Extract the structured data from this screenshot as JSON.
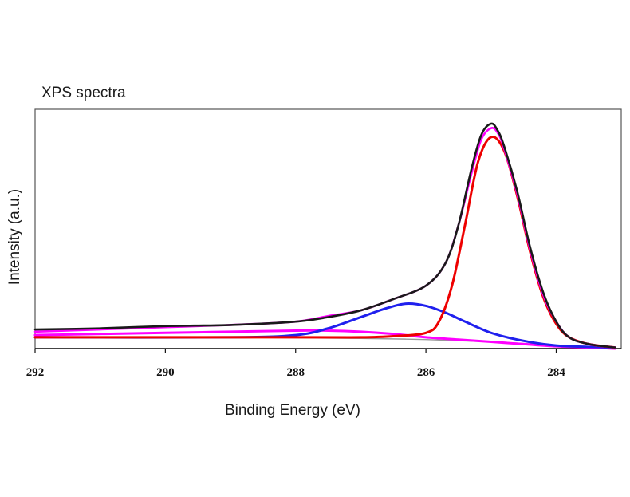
{
  "chart_data": {
    "type": "line",
    "title": "XPS spectra",
    "xlabel": "Binding Energy (eV)",
    "ylabel": "Intensity (a.u.)",
    "x_reversed": true,
    "xlim": [
      292,
      283.1
    ],
    "ylim": [
      0,
      1
    ],
    "xticks": [
      292,
      290,
      288,
      286,
      284
    ],
    "yticks": [],
    "grid": false,
    "legend": "none",
    "series": [
      {
        "color": "#1a1a1a",
        "x": [
          292.0,
          291.0,
          290.0,
          289.0,
          288.0,
          287.5,
          287.0,
          286.5,
          286.0,
          285.7,
          285.5,
          285.3,
          285.15,
          285.0,
          284.9,
          284.8,
          284.6,
          284.4,
          284.2,
          284.0,
          283.8,
          283.5,
          283.1
        ],
        "y": [
          0.085,
          0.09,
          0.1,
          0.105,
          0.12,
          0.14,
          0.17,
          0.22,
          0.28,
          0.38,
          0.55,
          0.8,
          0.95,
          1.0,
          0.97,
          0.9,
          0.7,
          0.45,
          0.25,
          0.12,
          0.05,
          0.02,
          0.005
        ]
      },
      {
        "color": "#ff00ff",
        "x": [
          292.0,
          291.0,
          290.0,
          289.0,
          288.0,
          287.5,
          287.0,
          286.5,
          286.0,
          285.7,
          285.5,
          285.3,
          285.15,
          285.0,
          284.9,
          284.8,
          284.6,
          284.4,
          284.2,
          284.0,
          283.8,
          283.5,
          283.1
        ],
        "y": [
          0.075,
          0.085,
          0.095,
          0.105,
          0.12,
          0.145,
          0.17,
          0.22,
          0.28,
          0.38,
          0.55,
          0.78,
          0.93,
          0.98,
          0.96,
          0.89,
          0.69,
          0.44,
          0.24,
          0.12,
          0.05,
          0.02,
          0.005
        ]
      },
      {
        "color": "#ee0000",
        "x": [
          292.0,
          288.0,
          287.0,
          286.5,
          286.0,
          285.8,
          285.6,
          285.4,
          285.2,
          285.0,
          284.8,
          284.6,
          284.4,
          284.2,
          284.0,
          283.8,
          283.5,
          283.1
        ],
        "y": [
          0.05,
          0.05,
          0.05,
          0.055,
          0.07,
          0.12,
          0.28,
          0.55,
          0.83,
          0.94,
          0.88,
          0.68,
          0.43,
          0.23,
          0.11,
          0.05,
          0.02,
          0.005
        ]
      },
      {
        "color": "#2020ee",
        "x": [
          292.0,
          289.0,
          288.0,
          287.5,
          287.0,
          286.6,
          286.3,
          286.0,
          285.7,
          285.4,
          285.0,
          284.6,
          284.2,
          283.8,
          283.1
        ],
        "y": [
          0.05,
          0.05,
          0.06,
          0.09,
          0.14,
          0.18,
          0.2,
          0.19,
          0.16,
          0.12,
          0.07,
          0.04,
          0.02,
          0.01,
          0.005
        ]
      },
      {
        "color": "#ff00ff",
        "x": [
          292.0,
          290.0,
          289.0,
          288.0,
          287.5,
          287.0,
          286.5,
          286.0,
          285.5,
          285.0,
          284.5,
          284.0,
          283.5,
          283.1
        ],
        "y": [
          0.06,
          0.07,
          0.075,
          0.08,
          0.08,
          0.075,
          0.065,
          0.05,
          0.04,
          0.03,
          0.02,
          0.01,
          0.005,
          0.0
        ]
      },
      {
        "color": "#999999",
        "x": [
          292.0,
          289.0,
          287.0,
          286.0,
          285.0,
          284.0,
          283.1
        ],
        "y": [
          0.05,
          0.05,
          0.045,
          0.04,
          0.03,
          0.015,
          0.0
        ]
      }
    ]
  }
}
